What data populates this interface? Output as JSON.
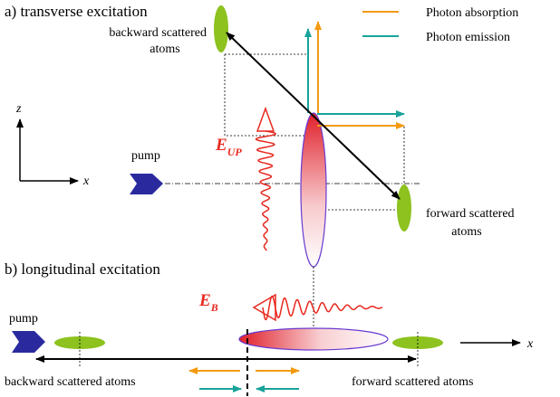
{
  "panel_a": {
    "title": "a) transverse excitation",
    "backward_label": [
      "backward scattered",
      "atoms"
    ],
    "forward_label": [
      "forward scattered",
      "atoms"
    ],
    "axis_z": "z",
    "axis_x": "x",
    "pump": "pump",
    "field": {
      "symbol": "E",
      "subscript": "UP"
    }
  },
  "legend": {
    "items": [
      "Photon absorption",
      "Photon emission"
    ]
  },
  "panel_b": {
    "title": "b) longitudinal excitation",
    "pump": "pump",
    "field": {
      "symbol": "E",
      "subscript": "B"
    },
    "axis_x": "x",
    "backward_label": "backward scattered atoms",
    "forward_label": "forward scattered atoms"
  }
}
